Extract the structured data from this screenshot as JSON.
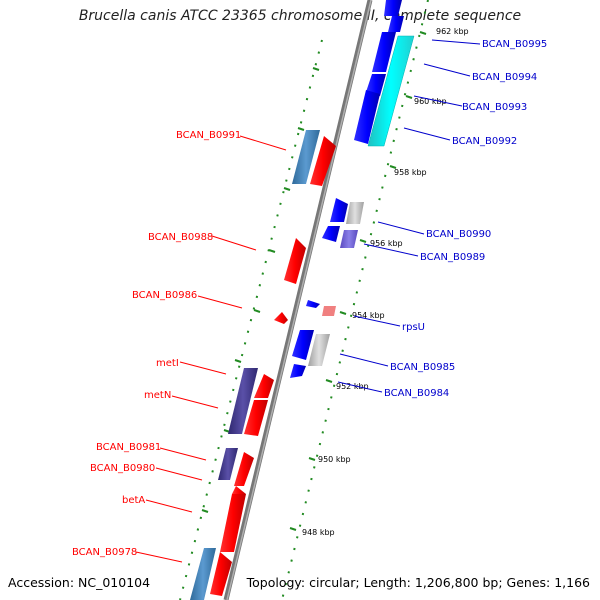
{
  "title": "Brucella canis ATCC 23365 chromosome II, complete sequence",
  "footer": {
    "accession": "Accession: NC_010104",
    "topology": "Topology: circular; Length: 1,206,800 bp; Genes: 1,166"
  },
  "colors": {
    "forward": "#ff0000",
    "reverse": "#0000ff",
    "cyan": "#00ffff",
    "steelblue": "#4682b4",
    "purple": "#483d8b",
    "grey": "#c0c0c0",
    "pink": "#f08080",
    "lavender": "#6a5acd",
    "backbone": "#808080",
    "tick": "#228b22"
  },
  "kbp_labels": [
    {
      "text": "962 kbp"
    },
    {
      "text": "960 kbp"
    },
    {
      "text": "958 kbp"
    },
    {
      "text": "956 kbp"
    },
    {
      "text": "954 kbp"
    },
    {
      "text": "952 kbp"
    },
    {
      "text": "950 kbp"
    },
    {
      "text": "948 kbp"
    }
  ],
  "gene_labels_left": [
    {
      "text": "BCAN_B0991"
    },
    {
      "text": "BCAN_B0988"
    },
    {
      "text": "BCAN_B0986"
    },
    {
      "text": "metI"
    },
    {
      "text": "metN"
    },
    {
      "text": "BCAN_B0981"
    },
    {
      "text": "BCAN_B0980"
    },
    {
      "text": "betA"
    },
    {
      "text": "BCAN_B0978"
    }
  ],
  "gene_labels_right": [
    {
      "text": "BCAN_B0995"
    },
    {
      "text": "BCAN_B0994"
    },
    {
      "text": "BCAN_B0993"
    },
    {
      "text": "BCAN_B0992"
    },
    {
      "text": "BCAN_B0990"
    },
    {
      "text": "BCAN_B0989"
    },
    {
      "text": "rpsU"
    },
    {
      "text": "BCAN_B0985"
    },
    {
      "text": "BCAN_B0984"
    }
  ]
}
